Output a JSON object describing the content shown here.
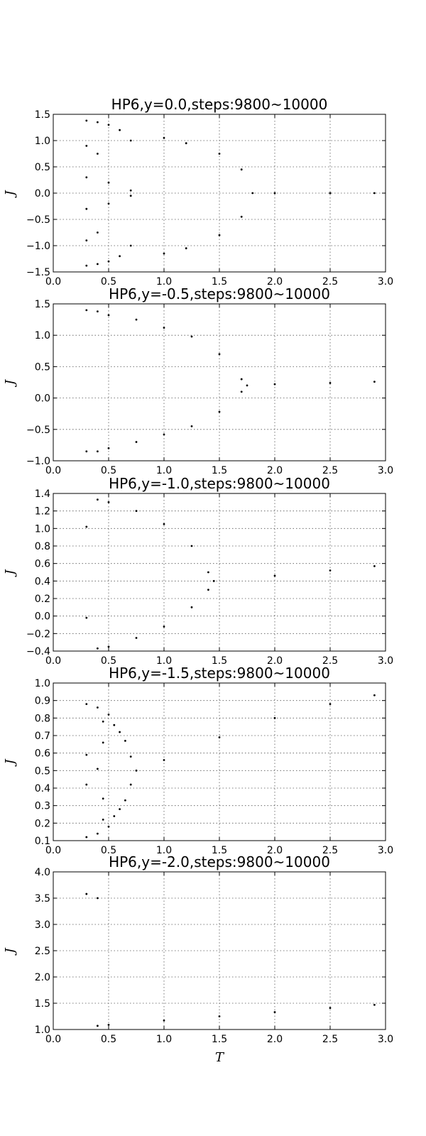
{
  "chart_data": [
    {
      "type": "scatter",
      "title": "HP6,y=0.0,steps:9800~10000",
      "xlabel": "",
      "ylabel": "J",
      "xlim": [
        0.0,
        3.0
      ],
      "ylim": [
        -1.5,
        1.5
      ],
      "xticks": [
        "0.0",
        "0.5",
        "1.0",
        "1.5",
        "2.0",
        "2.5",
        "3.0"
      ],
      "yticks": [
        "1.5",
        "1.0",
        "0.5",
        "0.0",
        "−0.5",
        "−1.0",
        "−1.5"
      ],
      "grid": true,
      "series": [
        {
          "marker": "dots",
          "color": "#000000",
          "points": [
            [
              0.3,
              1.38
            ],
            [
              0.3,
              0.9
            ],
            [
              0.3,
              0.3
            ],
            [
              0.3,
              -0.3
            ],
            [
              0.3,
              -0.9
            ],
            [
              0.3,
              -1.38
            ],
            [
              0.4,
              1.35
            ],
            [
              0.4,
              0.75
            ],
            [
              0.4,
              -0.75
            ],
            [
              0.4,
              -1.35
            ],
            [
              0.5,
              1.3
            ],
            [
              0.5,
              0.2
            ],
            [
              0.5,
              -0.2
            ],
            [
              0.5,
              -1.3
            ],
            [
              0.6,
              1.2
            ],
            [
              0.6,
              -1.2
            ],
            [
              0.7,
              1.0
            ],
            [
              0.7,
              0.05
            ],
            [
              0.7,
              -0.05
            ],
            [
              0.7,
              -1.0
            ],
            [
              1.0,
              1.05
            ],
            [
              1.0,
              -1.15
            ],
            [
              1.2,
              0.95
            ],
            [
              1.2,
              -1.05
            ],
            [
              1.5,
              0.75
            ],
            [
              1.5,
              -0.8
            ],
            [
              1.7,
              0.45
            ],
            [
              1.7,
              -0.45
            ],
            [
              1.8,
              0.0
            ],
            [
              2.0,
              0.0
            ],
            [
              2.5,
              0.0
            ],
            [
              2.9,
              0.0
            ]
          ]
        }
      ]
    },
    {
      "type": "scatter",
      "title": "HP6,y=-0.5,steps:9800~10000",
      "xlabel": "",
      "ylabel": "J",
      "xlim": [
        0.0,
        3.0
      ],
      "ylim": [
        -1.0,
        1.5
      ],
      "xticks": [
        "0.0",
        "0.5",
        "1.0",
        "1.5",
        "2.0",
        "2.5",
        "3.0"
      ],
      "yticks": [
        "1.5",
        "1.0",
        "0.5",
        "0.0",
        "−0.5",
        "−1.0"
      ],
      "grid": true,
      "series": [
        {
          "marker": "dots",
          "color": "#000000",
          "points": [
            [
              0.3,
              1.4
            ],
            [
              0.3,
              -0.85
            ],
            [
              0.4,
              1.38
            ],
            [
              0.4,
              -0.85
            ],
            [
              0.5,
              1.32
            ],
            [
              0.5,
              -0.8
            ],
            [
              0.75,
              1.25
            ],
            [
              0.75,
              -0.7
            ],
            [
              1.0,
              1.12
            ],
            [
              1.0,
              -0.58
            ],
            [
              1.25,
              0.98
            ],
            [
              1.25,
              -0.45
            ],
            [
              1.5,
              0.7
            ],
            [
              1.5,
              -0.22
            ],
            [
              1.7,
              0.3
            ],
            [
              1.7,
              0.1
            ],
            [
              1.75,
              0.2
            ],
            [
              2.0,
              0.22
            ],
            [
              2.5,
              0.24
            ],
            [
              2.9,
              0.26
            ]
          ]
        }
      ]
    },
    {
      "type": "scatter",
      "title": "HP6,y=-1.0,steps:9800~10000",
      "xlabel": "",
      "ylabel": "J",
      "xlim": [
        0.0,
        3.0
      ],
      "ylim": [
        -0.4,
        1.4
      ],
      "xticks": [
        "0.0",
        "0.5",
        "1.0",
        "1.5",
        "2.0",
        "2.5",
        "3.0"
      ],
      "yticks": [
        "1.4",
        "1.2",
        "1.0",
        "0.8",
        "0.6",
        "0.4",
        "0.2",
        "0.0",
        "−0.2",
        "−0.4"
      ],
      "grid": true,
      "series": [
        {
          "marker": "dots",
          "color": "#000000",
          "points": [
            [
              0.3,
              1.02
            ],
            [
              0.3,
              -0.02
            ],
            [
              0.4,
              1.33
            ],
            [
              0.4,
              -0.37
            ],
            [
              0.5,
              1.3
            ],
            [
              0.5,
              -0.35
            ],
            [
              0.75,
              1.2
            ],
            [
              0.75,
              -0.25
            ],
            [
              1.0,
              1.05
            ],
            [
              1.0,
              -0.12
            ],
            [
              1.25,
              0.8
            ],
            [
              1.25,
              0.1
            ],
            [
              1.4,
              0.5
            ],
            [
              1.4,
              0.3
            ],
            [
              1.45,
              0.4
            ],
            [
              2.0,
              0.46
            ],
            [
              2.5,
              0.52
            ],
            [
              2.9,
              0.57
            ]
          ]
        }
      ]
    },
    {
      "type": "scatter",
      "title": "HP6,y=-1.5,steps:9800~10000",
      "xlabel": "",
      "ylabel": "J",
      "xlim": [
        0.0,
        3.0
      ],
      "ylim": [
        0.1,
        1.0
      ],
      "xticks": [
        "0.0",
        "0.5",
        "1.0",
        "1.5",
        "2.0",
        "2.5",
        "3.0"
      ],
      "yticks": [
        "1.0",
        "0.9",
        "0.8",
        "0.7",
        "0.6",
        "0.5",
        "0.4",
        "0.3",
        "0.2",
        "0.1"
      ],
      "grid": true,
      "series": [
        {
          "marker": "dots",
          "color": "#000000",
          "points": [
            [
              0.3,
              0.88
            ],
            [
              0.3,
              0.59
            ],
            [
              0.3,
              0.42
            ],
            [
              0.3,
              0.12
            ],
            [
              0.4,
              0.86
            ],
            [
              0.4,
              0.51
            ],
            [
              0.4,
              0.14
            ],
            [
              0.45,
              0.78
            ],
            [
              0.45,
              0.66
            ],
            [
              0.45,
              0.34
            ],
            [
              0.45,
              0.22
            ],
            [
              0.5,
              0.82
            ],
            [
              0.5,
              0.18
            ],
            [
              0.55,
              0.76
            ],
            [
              0.55,
              0.24
            ],
            [
              0.6,
              0.72
            ],
            [
              0.6,
              0.28
            ],
            [
              0.65,
              0.67
            ],
            [
              0.65,
              0.33
            ],
            [
              0.7,
              0.58
            ],
            [
              0.7,
              0.42
            ],
            [
              0.75,
              0.5
            ],
            [
              1.0,
              0.56
            ],
            [
              1.5,
              0.69
            ],
            [
              2.0,
              0.8
            ],
            [
              2.5,
              0.88
            ],
            [
              2.9,
              0.93
            ]
          ]
        }
      ]
    },
    {
      "type": "scatter",
      "title": "HP6,y=-2.0,steps:9800~10000",
      "xlabel": "T",
      "ylabel": "J",
      "xlim": [
        0.0,
        3.0
      ],
      "ylim": [
        1.0,
        4.0
      ],
      "xticks": [
        "0.0",
        "0.5",
        "1.0",
        "1.5",
        "2.0",
        "2.5",
        "3.0"
      ],
      "yticks": [
        "4.0",
        "3.5",
        "3.0",
        "2.5",
        "2.0",
        "1.5",
        "1.0"
      ],
      "grid": true,
      "series": [
        {
          "marker": "dots",
          "color": "#000000",
          "points": [
            [
              0.3,
              3.58
            ],
            [
              0.4,
              3.5
            ],
            [
              0.4,
              1.07
            ],
            [
              0.5,
              1.09
            ],
            [
              1.0,
              1.17
            ],
            [
              1.5,
              1.25
            ],
            [
              2.0,
              1.33
            ],
            [
              2.5,
              1.41
            ],
            [
              2.9,
              1.47
            ]
          ]
        }
      ]
    }
  ]
}
